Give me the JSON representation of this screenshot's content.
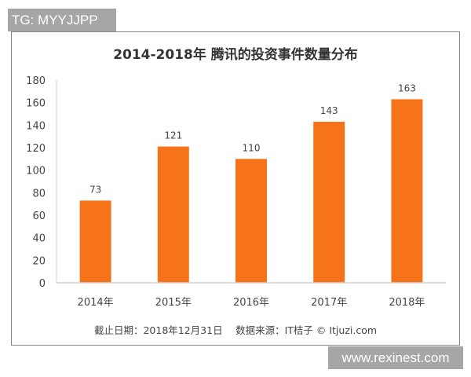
{
  "watermarks": {
    "top_left": "TG: MYYJJPP",
    "bottom_right": "www.rexinest.com"
  },
  "chart_data": {
    "type": "bar",
    "title": "2014-2018年 腾讯的投资事件数量分布",
    "categories": [
      "2014年",
      "2015年",
      "2016年",
      "2017年",
      "2018年"
    ],
    "values": [
      73,
      121,
      110,
      143,
      163
    ],
    "ylim": [
      0,
      180
    ],
    "yticks": [
      0,
      20,
      40,
      60,
      80,
      100,
      120,
      140,
      160,
      180
    ],
    "grid": false,
    "bar_color": "#f7731a",
    "footnote": "截止日期：2018年12月31日　 数据来源：IT桔子 © Itjuzi.com"
  }
}
